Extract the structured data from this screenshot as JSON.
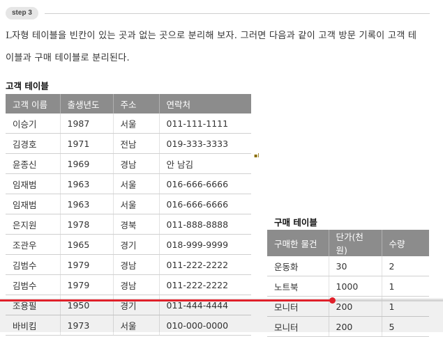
{
  "step": {
    "label": "step 3"
  },
  "paragraph": {
    "line1": "L자형 테이블을 빈칸이 있는 곳과 없는 곳으로 분리해 보자. 그러면 다음과 같이 고객 방문 기록이 고객 테",
    "line2": "이블과 구매 테이블로 분리된다."
  },
  "customer_table": {
    "title": "고객 테이블",
    "headers": [
      "고객 이름",
      "출생년도",
      "주소",
      "연락처"
    ],
    "rows": [
      [
        "이승기",
        "1987",
        "서울",
        "011-111-1111"
      ],
      [
        "김경호",
        "1971",
        "전남",
        "019-333-3333"
      ],
      [
        "윤종신",
        "1969",
        "경남",
        "안 남김"
      ],
      [
        "임재범",
        "1963",
        "서울",
        "016-666-6666"
      ],
      [
        "임재범",
        "1963",
        "서울",
        "016-666-6666"
      ],
      [
        "은지원",
        "1978",
        "경북",
        "011-888-8888"
      ],
      [
        "조관우",
        "1965",
        "경기",
        "018-999-9999"
      ],
      [
        "김범수",
        "1979",
        "경남",
        "011-222-2222"
      ],
      [
        "김범수",
        "1979",
        "경남",
        "011-222-2222"
      ],
      [
        "조용필",
        "1950",
        "경기",
        "011-444-4444"
      ],
      [
        "바비킴",
        "1973",
        "서울",
        "010-000-0000"
      ]
    ]
  },
  "purchase_table": {
    "title": "구매 테이블",
    "headers": [
      "구매한 물건",
      "단가(천 원)",
      "수량"
    ],
    "rows": [
      [
        "운동화",
        "30",
        "2"
      ],
      [
        "노트북",
        "1000",
        "1"
      ],
      [
        "모니터",
        "200",
        "1"
      ],
      [
        "모니터",
        "200",
        "5"
      ]
    ]
  },
  "player": {
    "progress": 0.75,
    "progress_color": "#e0202a"
  }
}
